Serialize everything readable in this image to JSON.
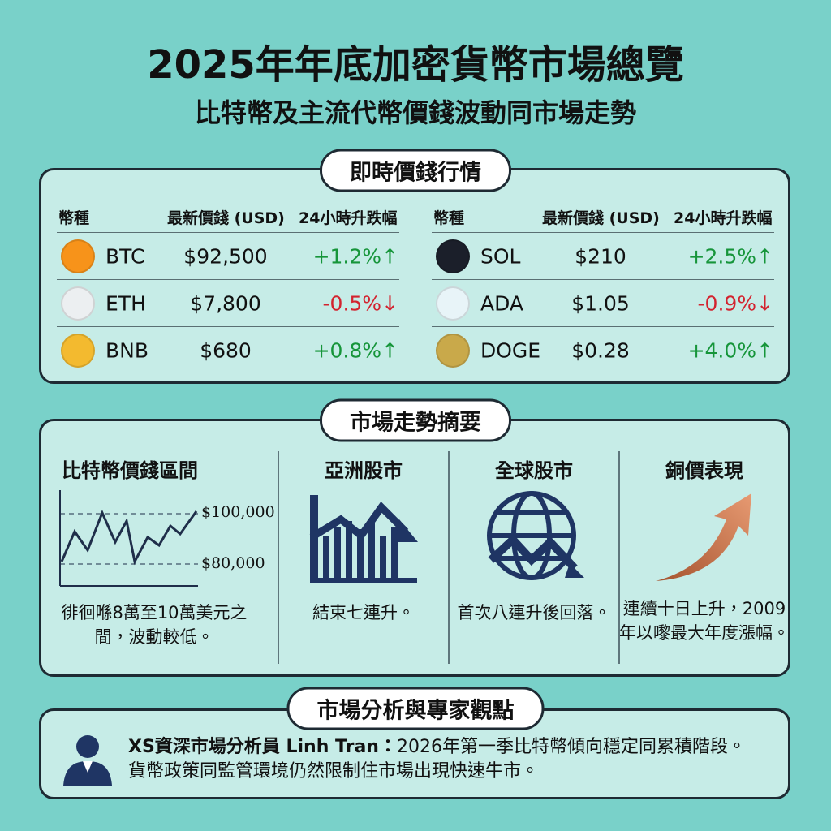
{
  "header": {
    "title": "2025年年底加密貨幣市場總覽",
    "subtitle": "比特幣及主流代幣價錢波動同市場走勢"
  },
  "prices": {
    "title": "即時價錢行情",
    "tables": [
      {
        "columns": [
          "幣種",
          "最新價錢 (USD)",
          "24小時升跌幅"
        ],
        "rows": [
          [
            "BTC",
            "$92,500",
            "+1.2%↑"
          ],
          [
            "ETH",
            "$7,800",
            "-0.5%↓"
          ],
          [
            "BNB",
            "$680",
            "+0.8%↑"
          ]
        ]
      },
      {
        "columns": [
          "幣種",
          "最新價錢 (USD)",
          "24小時升跌幅"
        ],
        "rows": [
          [
            "SOL",
            "$210",
            "+2.5%↑"
          ],
          [
            "ADA",
            "$1.05",
            "-0.9%↓"
          ],
          [
            "DOGE",
            "$0.28",
            "+4.0%↑"
          ]
        ]
      }
    ]
  },
  "summary": {
    "title": "市場走勢摘要",
    "items": [
      {
        "title": "比特幣價錢區間",
        "chart_labels": [
          "$100,000",
          "$80,000"
        ],
        "text": "徘徊喺8萬至10萬美元之間，波動較低。"
      },
      {
        "title": "亞洲股市",
        "text": "結束七連升。"
      },
      {
        "title": "全球股市",
        "text": "首次八連升後回落。"
      },
      {
        "title": "銅價表現",
        "text": "連續十日上升，2009年以嚟最大年度漲幅。"
      }
    ]
  },
  "analysis": {
    "title": "市場分析與專家觀點",
    "author": "XS資深市場分析員 Linh Tran：",
    "lines": [
      "2026年第一季比特幣傾向穩定同累積階段。",
      "貨幣政策同監管環境仍然限制住市場出現快速牛市。"
    ]
  }
}
